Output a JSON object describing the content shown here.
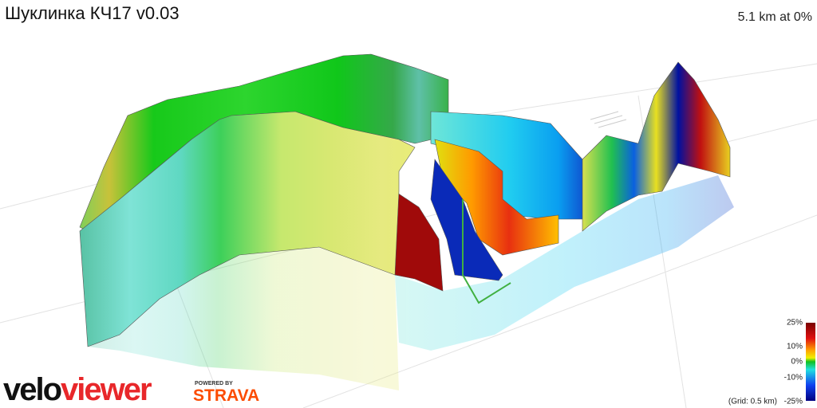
{
  "header": {
    "title": "Шуклинка КЧ17 v0.03",
    "status": "5.1 km at 0%"
  },
  "legend": {
    "labels": [
      "25%",
      "10%",
      "0%",
      "-10%",
      "-25%"
    ],
    "grid_note": "(Grid: 0.5 km)"
  },
  "logo": {
    "velo": "velo",
    "viewer": "viewer",
    "powered": "POWERED BY",
    "strava": "STRAVA"
  }
}
